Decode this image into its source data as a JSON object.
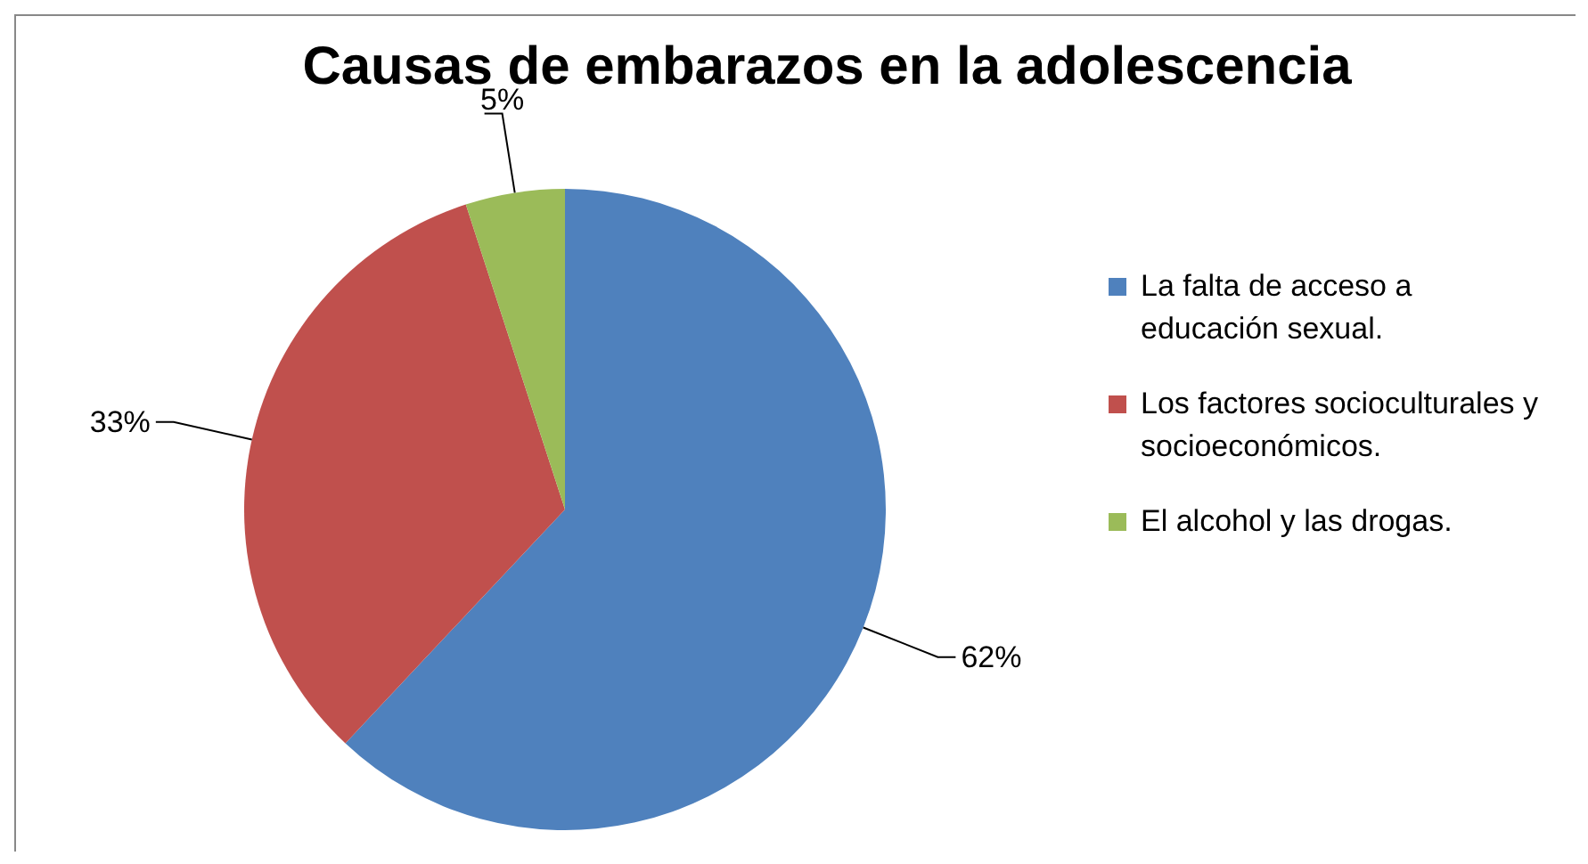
{
  "chart_data": {
    "type": "pie",
    "title": "Causas de embarazos en la adolescencia",
    "categories": [
      "La falta de acceso a educación sexual.",
      "Los factores socioculturales y socioeconómicos.",
      "El alcohol y las drogas."
    ],
    "values": [
      62,
      33,
      5
    ],
    "colors": [
      "#4f81bd",
      "#c0504d",
      "#9bbb59"
    ],
    "value_labels": [
      "62%",
      "33%",
      "5%"
    ],
    "legend": "right"
  }
}
